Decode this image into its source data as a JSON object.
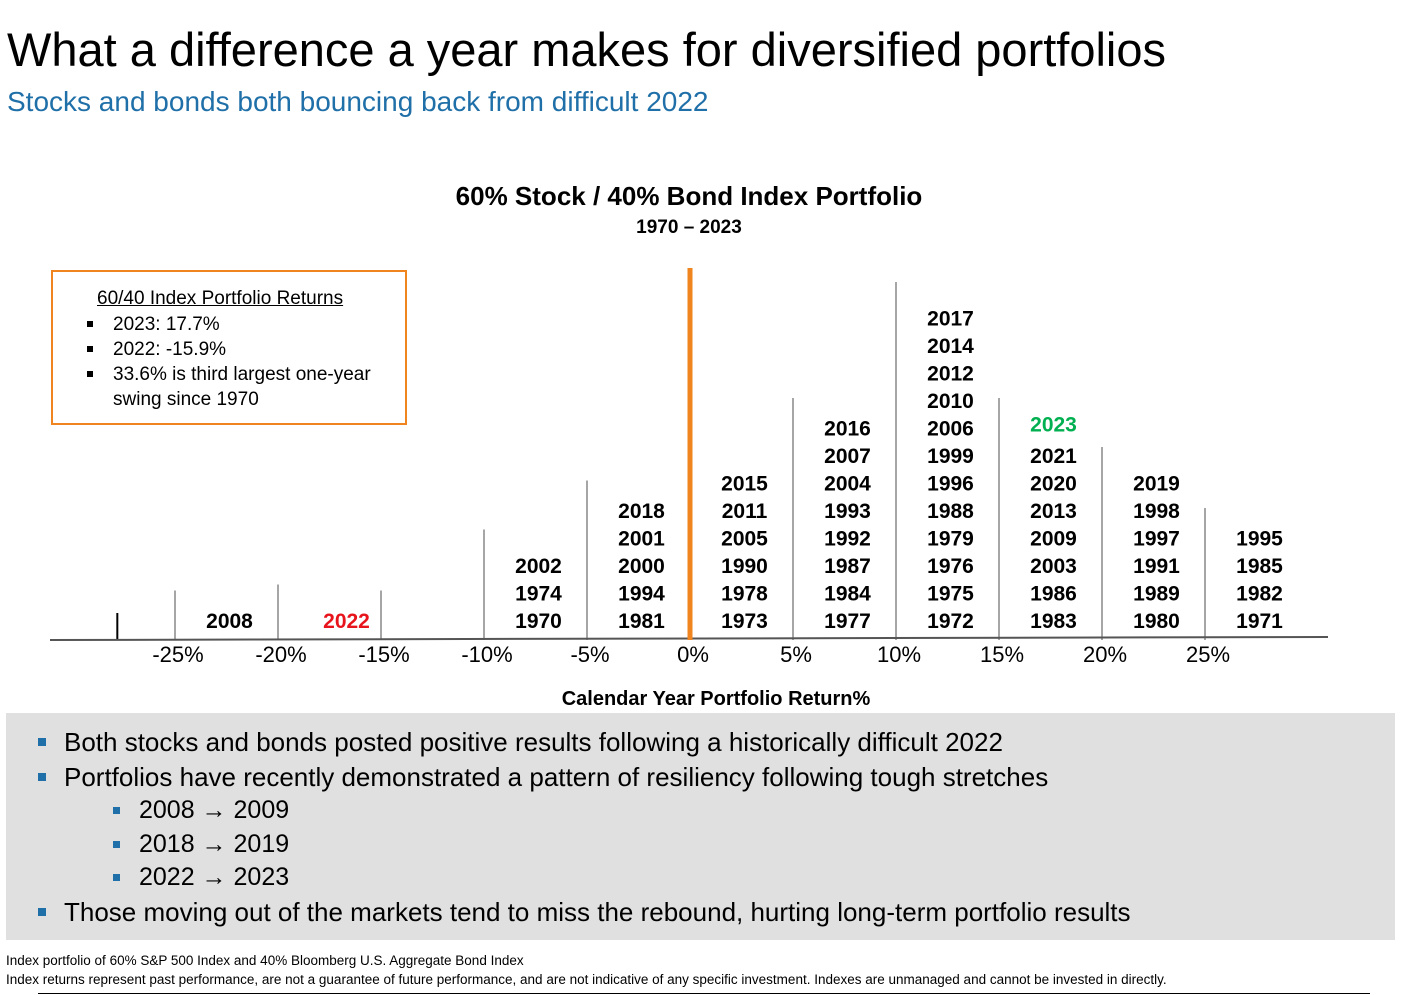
{
  "header": {
    "title": "What a difference a year makes for diversified portfolios",
    "subtitle": "Stocks and bonds both bouncing back from difficult 2022"
  },
  "legend_box": {
    "title": "60/40 Index Portfolio Returns",
    "items": [
      "2023:  17.7%",
      "2022: -15.9%",
      "33.6% is third largest one-year swing since 1970"
    ]
  },
  "bullets": {
    "b1": "Both stocks and bonds posted positive results following a historically difficult 2022",
    "b2": "Portfolios have recently demonstrated a pattern of resiliency following tough stretches",
    "sub1": "2008 → 2009",
    "sub2": "2018 → 2019",
    "sub3": "2022 → 2023",
    "b3": "Those moving out of the markets tend to miss the rebound, hurting long-term portfolio results"
  },
  "footnotes": {
    "line1": "Index portfolio of 60% S&P 500 Index and 40% Bloomberg U.S. Aggregate Bond Index",
    "line2": "Index returns represent past performance, are not a guarantee of future performance, and are not indicative of any specific investment. Indexes are unmanaged and cannot be invested in directly."
  },
  "colors": {
    "subtitle": "#1f6fa8",
    "zero_line": "#f0841f",
    "highlight_2022": "#e8141c",
    "highlight_2023": "#00b050",
    "panel": "#e0e0e0"
  },
  "chart_data": {
    "type": "histogram",
    "title": "60% Stock / 40% Bond Index Portfolio",
    "subtitle": "1970 – 2023",
    "xlabel": "Calendar Year Portfolio Return%",
    "x_ticks": [
      "-25%",
      "-20%",
      "-15%",
      "-10%",
      "-5%",
      "0%",
      "5%",
      "10%",
      "15%",
      "20%",
      "25%"
    ],
    "bins": [
      {
        "range": [
          -25,
          -20
        ],
        "years": [
          "2008"
        ]
      },
      {
        "range": [
          -20,
          -15
        ],
        "years": [
          "2022"
        ]
      },
      {
        "range": [
          -15,
          -10
        ],
        "years": []
      },
      {
        "range": [
          -10,
          -5
        ],
        "years": [
          "1970",
          "1974",
          "2002"
        ]
      },
      {
        "range": [
          -5,
          0
        ],
        "years": [
          "1981",
          "1994",
          "2000",
          "2001",
          "2018"
        ]
      },
      {
        "range": [
          0,
          5
        ],
        "years": [
          "1973",
          "1978",
          "1990",
          "2005",
          "2011",
          "2015"
        ]
      },
      {
        "range": [
          5,
          10
        ],
        "years": [
          "1977",
          "1984",
          "1987",
          "1992",
          "1993",
          "2004",
          "2007",
          "2016"
        ]
      },
      {
        "range": [
          10,
          15
        ],
        "years": [
          "1972",
          "1975",
          "1976",
          "1979",
          "1988",
          "1996",
          "1999",
          "2006",
          "2010",
          "2012",
          "2014",
          "2017"
        ]
      },
      {
        "range": [
          15,
          20
        ],
        "years": [
          "1983",
          "1986",
          "2003",
          "2009",
          "2013",
          "2020",
          "2021",
          "2023"
        ]
      },
      {
        "range": [
          20,
          25
        ],
        "years": [
          "1980",
          "1989",
          "1991",
          "1997",
          "1998",
          "2019"
        ]
      },
      {
        "range": [
          25,
          30
        ],
        "years": [
          "1971",
          "1982",
          "1985",
          "1995"
        ]
      }
    ],
    "highlights": {
      "2022": "red",
      "2023": "green"
    },
    "reference_line": 0
  }
}
